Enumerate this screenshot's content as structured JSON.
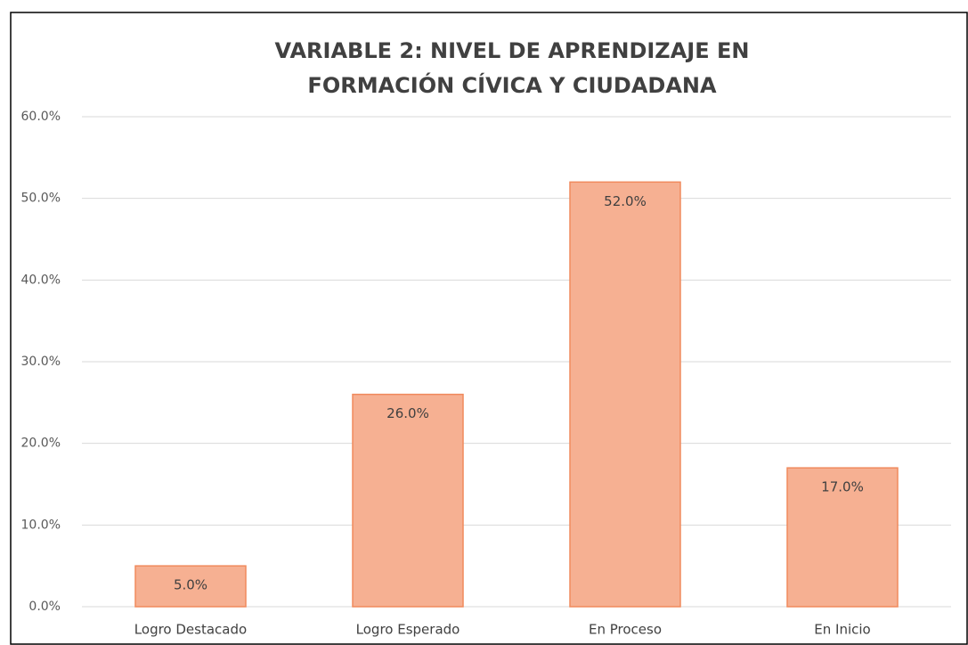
{
  "chart_data": {
    "type": "bar",
    "title": [
      "VARIABLE 2: NIVEL DE APRENDIZAJE EN",
      "FORMACIÓN CÍVICA Y CIUDADANA"
    ],
    "categories": [
      "Logro Destacado",
      "Logro Esperado",
      "En Proceso",
      "En Inicio"
    ],
    "values": [
      5,
      26,
      52,
      17
    ],
    "value_labels": [
      "5.0%",
      "26.0%",
      "52.0%",
      "17.0%"
    ],
    "color": "#f6b092",
    "edgecolor": "#f08a5d",
    "ylim": [
      0,
      60
    ],
    "yticks": [
      {
        "value": 0,
        "label": "0.0%"
      },
      {
        "value": 10,
        "label": "10.0%"
      },
      {
        "value": 20,
        "label": "20.0%"
      },
      {
        "value": 30,
        "label": "30.0%"
      },
      {
        "value": 40,
        "label": "40.0%"
      },
      {
        "value": 50,
        "label": "50.0%"
      },
      {
        "value": 60,
        "label": "60.0%"
      }
    ],
    "grid": true
  }
}
